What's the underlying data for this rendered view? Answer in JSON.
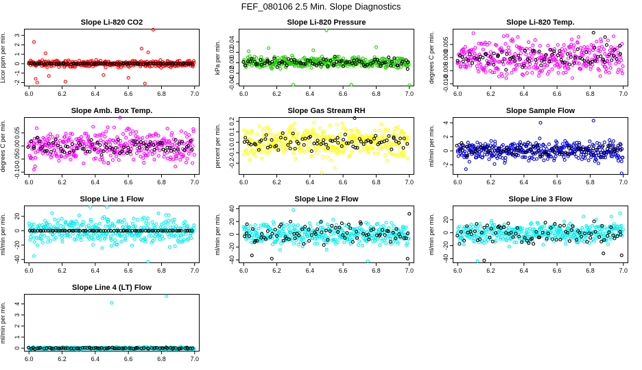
{
  "title": "FEF_080106  2.5 Min. Slope Diagnostics",
  "colors": {
    "co2": "#ff0000",
    "pressure": "#22cc00",
    "temp": "#ff00ff",
    "box_temp": "#ff00ff",
    "rh": "#ffff00",
    "sample_flow": "#0000dd",
    "line_flow": "#00eeee",
    "reference": "#000000"
  },
  "chart_data": [
    {
      "type": "scatter",
      "title": "Slope Li-820 CO2",
      "xlabel": "",
      "ylabel": "Licor ppm per min.",
      "xlim": [
        5.97,
        7.03
      ],
      "ylim": [
        -2.4,
        3.7
      ],
      "x_ticks": [
        "6.0",
        "6.2",
        "6.4",
        "6.6",
        "6.8",
        "7.0"
      ],
      "y_ticks": [
        "-2",
        "-1",
        "0",
        "1",
        "2",
        "3"
      ],
      "series": [
        {
          "name": "slope",
          "color_key": "co2",
          "spread": 0.25,
          "outliers": [
            [
              6.03,
              2.3
            ],
            [
              6.04,
              -1.6
            ],
            [
              6.05,
              -2.0
            ],
            [
              6.1,
              1.1
            ],
            [
              6.12,
              -1.3
            ],
            [
              6.22,
              -1.9
            ],
            [
              6.45,
              -1.2
            ],
            [
              6.6,
              -1.5
            ],
            [
              6.68,
              1.6
            ],
            [
              6.7,
              -2.1
            ],
            [
              6.75,
              3.6
            ],
            [
              6.72,
              1.2
            ]
          ]
        },
        {
          "name": "reference",
          "color_key": "reference",
          "spread": 0.05,
          "outliers": []
        }
      ]
    },
    {
      "type": "scatter",
      "title": "Slope Li-820 Pressure",
      "xlabel": "",
      "ylabel": "kPa per min.",
      "xlim": [
        5.97,
        7.03
      ],
      "ylim": [
        -0.045,
        0.065
      ],
      "x_ticks": [
        "6.0",
        "6.2",
        "6.4",
        "6.6",
        "6.8",
        "7.0"
      ],
      "y_ticks": [
        "-0.04",
        "-0.02",
        "0.00",
        "0.02",
        "0.04"
      ],
      "series": [
        {
          "name": "slope",
          "color_key": "pressure",
          "spread": 0.008,
          "outliers": [
            [
              6.03,
              0.022
            ],
            [
              6.15,
              0.028
            ],
            [
              6.3,
              -0.042
            ],
            [
              6.5,
              0.062
            ],
            [
              6.65,
              -0.042
            ],
            [
              6.8,
              0.03
            ],
            [
              7.0,
              -0.043
            ],
            [
              6.42,
              0.024
            ]
          ]
        },
        {
          "name": "reference",
          "color_key": "reference",
          "spread": 0.006,
          "outliers": [
            [
              6.99,
              -0.012
            ],
            [
              6.55,
              0.012
            ]
          ]
        }
      ]
    },
    {
      "type": "scatter",
      "title": "Slope Li-820 Temp.",
      "xlabel": "",
      "ylabel": "degrees C per min.",
      "xlim": [
        5.97,
        7.03
      ],
      "ylim": [
        -0.011,
        0.011
      ],
      "x_ticks": [
        "6.0",
        "6.2",
        "6.4",
        "6.6",
        "6.8",
        "7.0"
      ],
      "y_ticks": [
        "-0.010",
        "-0.005",
        "0.000",
        "0.005"
      ],
      "series": [
        {
          "name": "slope",
          "color_key": "temp",
          "spread": 0.0055,
          "outliers": []
        },
        {
          "name": "reference",
          "color_key": "reference",
          "spread": 0.003,
          "outliers": [
            [
              6.82,
              0.0095
            ],
            [
              6.89,
              0.0078
            ]
          ]
        }
      ]
    },
    {
      "type": "scatter",
      "title": "Slope Amb. Box Temp.",
      "xlabel": "",
      "ylabel": "degrees C per min.",
      "xlim": [
        5.97,
        7.03
      ],
      "ylim": [
        -0.11,
        0.11
      ],
      "x_ticks": [
        "6.0",
        "6.2",
        "6.4",
        "6.6",
        "6.8",
        "7.0"
      ],
      "y_ticks": [
        "-0.10",
        "-0.05",
        "0.00",
        "0.05"
      ],
      "series": [
        {
          "name": "slope",
          "color_key": "box_temp",
          "spread": 0.045,
          "outliers": [
            [
              6.55,
              0.108
            ],
            [
              6.03,
              -0.09
            ]
          ]
        },
        {
          "name": "reference",
          "color_key": "reference",
          "spread": 0.025,
          "outliers": []
        }
      ]
    },
    {
      "type": "scatter",
      "title": "Slope Gas Stream RH",
      "xlabel": "",
      "ylabel": "percent per min.",
      "xlim": [
        5.97,
        7.03
      ],
      "ylim": [
        -0.31,
        0.24
      ],
      "x_ticks": [
        "6.0",
        "6.2",
        "6.4",
        "6.6",
        "6.8",
        "7.0"
      ],
      "y_ticks": [
        "-0.2",
        "-0.1",
        "0.0",
        "0.1",
        "0.2"
      ],
      "series": [
        {
          "name": "slope",
          "color_key": "rh",
          "spread": 0.11,
          "outliers": [
            [
              6.47,
              -0.29
            ],
            [
              6.55,
              -0.25
            ]
          ]
        },
        {
          "name": "reference",
          "color_key": "reference",
          "spread": 0.06,
          "outliers": [
            [
              6.67,
              0.23
            ]
          ]
        }
      ]
    },
    {
      "type": "scatter",
      "title": "Slope Sample Flow",
      "xlabel": "",
      "ylabel": "ml/min per min.",
      "xlim": [
        5.97,
        7.03
      ],
      "ylim": [
        -3.4,
        4.8
      ],
      "x_ticks": [
        "6.0",
        "6.2",
        "6.4",
        "6.6",
        "6.8",
        "7.0"
      ],
      "y_ticks": [
        "-2",
        "0",
        "2",
        "4"
      ],
      "series": [
        {
          "name": "slope",
          "color_key": "sample_flow",
          "spread": 1.1,
          "outliers": [
            [
              6.5,
              4.0
            ],
            [
              6.82,
              4.3
            ],
            [
              6.99,
              -3.2
            ],
            [
              6.05,
              -2.6
            ]
          ]
        },
        {
          "name": "reference",
          "color_key": "reference",
          "spread": 0.7,
          "outliers": []
        }
      ]
    },
    {
      "type": "scatter",
      "title": "Slope Line 1 Flow",
      "xlabel": "",
      "ylabel": "ml/min per min.",
      "xlim": [
        5.97,
        7.03
      ],
      "ylim": [
        -45,
        35
      ],
      "x_ticks": [
        "6.0",
        "6.2",
        "6.4",
        "6.6",
        "6.8",
        "7.0"
      ],
      "y_ticks": [
        "-40",
        "-20",
        "0",
        "20"
      ],
      "series": [
        {
          "name": "slope",
          "color_key": "line_flow",
          "spread": 14,
          "outliers": [
            [
              6.37,
              33
            ],
            [
              6.47,
              33
            ],
            [
              6.72,
              -43
            ],
            [
              6.03,
              -35
            ]
          ]
        },
        {
          "name": "reference",
          "color_key": "reference",
          "spread": 0,
          "outliers": []
        }
      ]
    },
    {
      "type": "scatter",
      "title": "Slope Line 2 Flow",
      "xlabel": "",
      "ylabel": "ml/min per min.",
      "xlim": [
        5.97,
        7.03
      ],
      "ylim": [
        -45,
        45
      ],
      "x_ticks": [
        "6.0",
        "6.2",
        "6.4",
        "6.6",
        "6.8",
        "7.0"
      ],
      "y_ticks": [
        "-40",
        "-20",
        "0",
        "20",
        "40"
      ],
      "series": [
        {
          "name": "slope",
          "color_key": "line_flow",
          "spread": 13,
          "outliers": [
            [
              6.3,
              38
            ],
            [
              6.75,
              -42
            ]
          ]
        },
        {
          "name": "reference",
          "color_key": "reference",
          "spread": 12,
          "outliers": [
            [
              6.99,
              -38
            ],
            [
              6.05,
              -33
            ],
            [
              6.17,
              -38
            ],
            [
              7.0,
              32
            ]
          ]
        }
      ]
    },
    {
      "type": "scatter",
      "title": "Slope Line 3 Flow",
      "xlabel": "",
      "ylabel": "ml/min per min.",
      "xlim": [
        5.97,
        7.03
      ],
      "ylim": [
        -47,
        42
      ],
      "x_ticks": [
        "6.0",
        "6.2",
        "6.4",
        "6.6",
        "6.8",
        "7.0"
      ],
      "y_ticks": [
        "-40",
        "-20",
        "0",
        "20"
      ],
      "series": [
        {
          "name": "slope",
          "color_key": "line_flow",
          "spread": 13,
          "outliers": [
            [
              6.12,
              -44
            ],
            [
              6.98,
              30
            ]
          ]
        },
        {
          "name": "reference",
          "color_key": "reference",
          "spread": 12,
          "outliers": [
            [
              6.16,
              -43
            ],
            [
              6.99,
              -35
            ],
            [
              6.88,
              -32
            ]
          ]
        }
      ]
    },
    {
      "type": "scatter",
      "title": "Slope Line 4 (LT) Flow",
      "xlabel": "",
      "ylabel": "ml/min per min.",
      "xlim": [
        5.97,
        7.03
      ],
      "ylim": [
        -0.3,
        4.9
      ],
      "x_ticks": [
        "6.0",
        "6.2",
        "6.4",
        "6.6",
        "6.8",
        "7.0"
      ],
      "y_ticks": [
        "0",
        "1",
        "2",
        "3",
        "4"
      ],
      "series": [
        {
          "name": "slope",
          "color_key": "line_flow",
          "spread": 0.07,
          "outliers": [
            [
              6.5,
              4.1
            ],
            [
              6.83,
              4.7
            ]
          ]
        },
        {
          "name": "reference",
          "color_key": "reference",
          "spread": 0.05,
          "outliers": []
        }
      ]
    }
  ]
}
